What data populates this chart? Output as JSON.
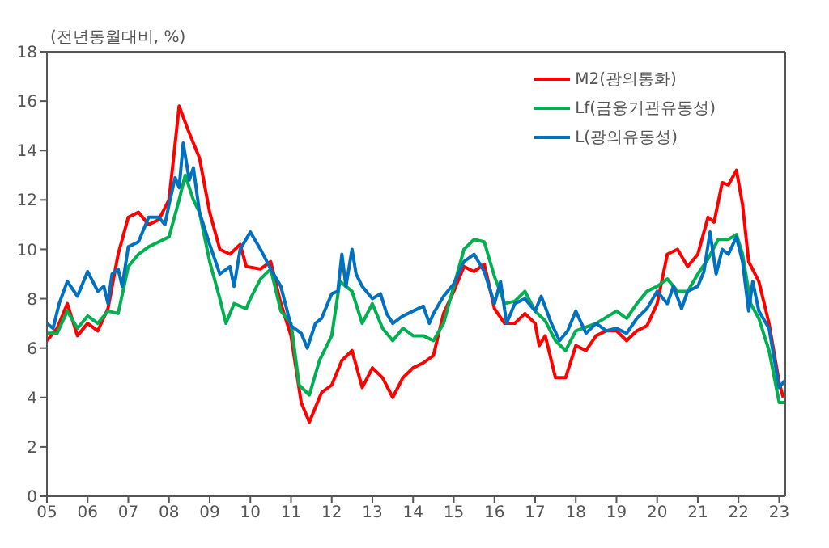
{
  "chart_data": {
    "type": "line",
    "ylabel": "(전년동월대비, %)",
    "xlim": [
      2005,
      2023.15
    ],
    "xticks": [
      {
        "value": 2005,
        "label": "05"
      },
      {
        "value": 2006,
        "label": "06"
      },
      {
        "value": 2007,
        "label": "07"
      },
      {
        "value": 2008,
        "label": "08"
      },
      {
        "value": 2009,
        "label": "09"
      },
      {
        "value": 2010,
        "label": "10"
      },
      {
        "value": 2011,
        "label": "11"
      },
      {
        "value": 2012,
        "label": "12"
      },
      {
        "value": 2013,
        "label": "13"
      },
      {
        "value": 2014,
        "label": "14"
      },
      {
        "value": 2015,
        "label": "15"
      },
      {
        "value": 2016,
        "label": "16"
      },
      {
        "value": 2017,
        "label": "17"
      },
      {
        "value": 2018,
        "label": "18"
      },
      {
        "value": 2019,
        "label": "19"
      },
      {
        "value": 2020,
        "label": "20"
      },
      {
        "value": 2021,
        "label": "21"
      },
      {
        "value": 2022,
        "label": "22"
      },
      {
        "value": 2023,
        "label": "23"
      }
    ],
    "ylim": [
      0,
      18
    ],
    "yticks": [
      0,
      2,
      4,
      6,
      8,
      10,
      12,
      14,
      16,
      18
    ],
    "legend": "top right",
    "marker": "none",
    "line_style": "solid",
    "series": [
      {
        "name": "M2(광의통화)",
        "color": "#ff0000",
        "x": [
          2005,
          2005.25,
          2005.5,
          2005.75,
          2006,
          2006.25,
          2006.5,
          2006.75,
          2007,
          2007.25,
          2007.5,
          2007.75,
          2008,
          2008.1,
          2008.25,
          2008.5,
          2008.75,
          2009,
          2009.25,
          2009.5,
          2009.75,
          2009.9,
          2010.25,
          2010.5,
          2010.75,
          2011,
          2011.25,
          2011.45,
          2011.75,
          2012,
          2012.25,
          2012.5,
          2012.75,
          2013,
          2013.25,
          2013.5,
          2013.75,
          2014,
          2014.25,
          2014.5,
          2014.75,
          2015,
          2015.25,
          2015.5,
          2015.75,
          2016,
          2016.25,
          2016.5,
          2016.75,
          2017,
          2017.1,
          2017.25,
          2017.5,
          2017.75,
          2018,
          2018.25,
          2018.5,
          2018.75,
          2019,
          2019.25,
          2019.5,
          2019.75,
          2020,
          2020.25,
          2020.5,
          2020.75,
          2021,
          2021.25,
          2021.4,
          2021.6,
          2021.75,
          2021.95,
          2022.1,
          2022.25,
          2022.5,
          2022.75,
          2023,
          2023.1
        ],
        "values": [
          6.3,
          6.8,
          7.8,
          6.5,
          7.0,
          6.7,
          7.6,
          9.8,
          11.3,
          11.5,
          11.0,
          11.2,
          12.0,
          13.5,
          15.8,
          14.7,
          13.7,
          11.5,
          10.0,
          9.8,
          10.2,
          9.3,
          9.2,
          9.5,
          7.8,
          6.5,
          3.8,
          3.0,
          4.2,
          4.5,
          5.5,
          5.9,
          4.4,
          5.2,
          4.8,
          4.0,
          4.8,
          5.2,
          5.4,
          5.7,
          7.4,
          8.3,
          9.3,
          9.1,
          9.4,
          7.6,
          7.0,
          7.0,
          7.4,
          7.0,
          6.1,
          6.5,
          4.8,
          4.8,
          6.1,
          5.9,
          6.5,
          6.7,
          6.7,
          6.3,
          6.7,
          6.9,
          7.8,
          9.8,
          10.0,
          9.3,
          9.8,
          11.3,
          11.1,
          12.7,
          12.6,
          13.2,
          11.8,
          9.5,
          8.7,
          7.0,
          4.6,
          4.0
        ]
      },
      {
        "name": "Lf(금융기관유동성)",
        "color": "#00b050",
        "x": [
          2005,
          2005.25,
          2005.5,
          2005.75,
          2006,
          2006.25,
          2006.5,
          2006.75,
          2007,
          2007.25,
          2007.5,
          2007.75,
          2008,
          2008.25,
          2008.4,
          2008.6,
          2008.75,
          2009,
          2009.25,
          2009.4,
          2009.6,
          2009.9,
          2010,
          2010.25,
          2010.5,
          2010.75,
          2011,
          2011.2,
          2011.45,
          2011.7,
          2012,
          2012.2,
          2012.5,
          2012.75,
          2013,
          2013.25,
          2013.5,
          2013.75,
          2014,
          2014.25,
          2014.5,
          2014.75,
          2015,
          2015.25,
          2015.5,
          2015.75,
          2016,
          2016.25,
          2016.5,
          2016.75,
          2017,
          2017.25,
          2017.5,
          2017.75,
          2018,
          2018.5,
          2019,
          2019.25,
          2019.5,
          2019.75,
          2020,
          2020.25,
          2020.5,
          2020.75,
          2021,
          2021.25,
          2021.5,
          2021.75,
          2021.95,
          2022.1,
          2022.3,
          2022.5,
          2022.75,
          2023,
          2023.15
        ],
        "values": [
          6.6,
          6.6,
          7.5,
          6.8,
          7.3,
          7.0,
          7.5,
          7.4,
          9.3,
          9.8,
          10.1,
          10.3,
          10.5,
          12.0,
          13.0,
          12.0,
          11.5,
          9.5,
          8.0,
          7.0,
          7.8,
          7.6,
          8.0,
          8.8,
          9.2,
          7.5,
          7.0,
          4.5,
          4.1,
          5.5,
          6.5,
          8.7,
          8.3,
          7.0,
          7.8,
          6.8,
          6.3,
          6.8,
          6.5,
          6.5,
          6.3,
          7.0,
          8.5,
          10.0,
          10.4,
          10.3,
          8.9,
          7.8,
          7.9,
          8.3,
          7.5,
          7.1,
          6.3,
          5.9,
          6.7,
          7.0,
          7.5,
          7.2,
          7.8,
          8.3,
          8.5,
          8.8,
          8.3,
          8.3,
          9.0,
          9.6,
          10.4,
          10.4,
          10.6,
          9.8,
          7.8,
          7.2,
          5.9,
          3.8,
          3.8
        ]
      },
      {
        "name": "L(광의유동성)",
        "color": "#0070c0",
        "x": [
          2005,
          2005.15,
          2005.3,
          2005.5,
          2005.75,
          2006,
          2006.25,
          2006.4,
          2006.5,
          2006.6,
          2006.75,
          2006.85,
          2007,
          2007.25,
          2007.5,
          2007.75,
          2007.9,
          2008,
          2008.15,
          2008.25,
          2008.35,
          2008.5,
          2008.6,
          2008.75,
          2009,
          2009.25,
          2009.5,
          2009.6,
          2009.75,
          2010,
          2010.25,
          2010.5,
          2010.75,
          2011,
          2011.25,
          2011.4,
          2011.6,
          2011.75,
          2012,
          2012.15,
          2012.25,
          2012.35,
          2012.5,
          2012.6,
          2012.75,
          2013,
          2013.2,
          2013.35,
          2013.5,
          2013.75,
          2014,
          2014.25,
          2014.4,
          2014.5,
          2014.75,
          2015,
          2015.25,
          2015.5,
          2015.75,
          2016,
          2016.15,
          2016.3,
          2016.5,
          2016.75,
          2017,
          2017.15,
          2017.4,
          2017.6,
          2017.8,
          2018,
          2018.25,
          2018.5,
          2018.75,
          2019,
          2019.25,
          2019.5,
          2019.75,
          2020,
          2020.25,
          2020.4,
          2020.6,
          2020.75,
          2021,
          2021.15,
          2021.3,
          2021.45,
          2021.6,
          2021.75,
          2021.95,
          2022.1,
          2022.25,
          2022.35,
          2022.5,
          2022.75,
          2023,
          2023.15
        ],
        "values": [
          7.0,
          6.8,
          7.8,
          8.7,
          8.1,
          9.1,
          8.3,
          8.5,
          7.8,
          9.0,
          9.2,
          8.5,
          10.1,
          10.3,
          11.3,
          11.3,
          11.0,
          11.8,
          12.9,
          12.5,
          14.3,
          12.8,
          13.3,
          11.5,
          10.2,
          9.0,
          9.3,
          8.5,
          10.0,
          10.7,
          10.0,
          9.2,
          8.5,
          6.9,
          6.6,
          6.0,
          7.0,
          7.2,
          8.2,
          8.3,
          9.8,
          8.5,
          10.0,
          9.0,
          8.5,
          8.0,
          8.2,
          7.4,
          7.0,
          7.3,
          7.5,
          7.7,
          7.0,
          7.4,
          8.1,
          8.6,
          9.5,
          9.8,
          9.1,
          7.8,
          8.7,
          7.0,
          7.8,
          8.0,
          7.5,
          8.1,
          7.0,
          6.3,
          6.7,
          7.5,
          6.6,
          7.0,
          6.7,
          6.8,
          6.6,
          7.2,
          7.6,
          8.3,
          7.8,
          8.5,
          7.6,
          8.3,
          8.5,
          9.1,
          10.7,
          9.0,
          10.0,
          9.8,
          10.5,
          9.5,
          7.5,
          8.7,
          7.5,
          6.8,
          4.4,
          4.7
        ]
      }
    ]
  }
}
